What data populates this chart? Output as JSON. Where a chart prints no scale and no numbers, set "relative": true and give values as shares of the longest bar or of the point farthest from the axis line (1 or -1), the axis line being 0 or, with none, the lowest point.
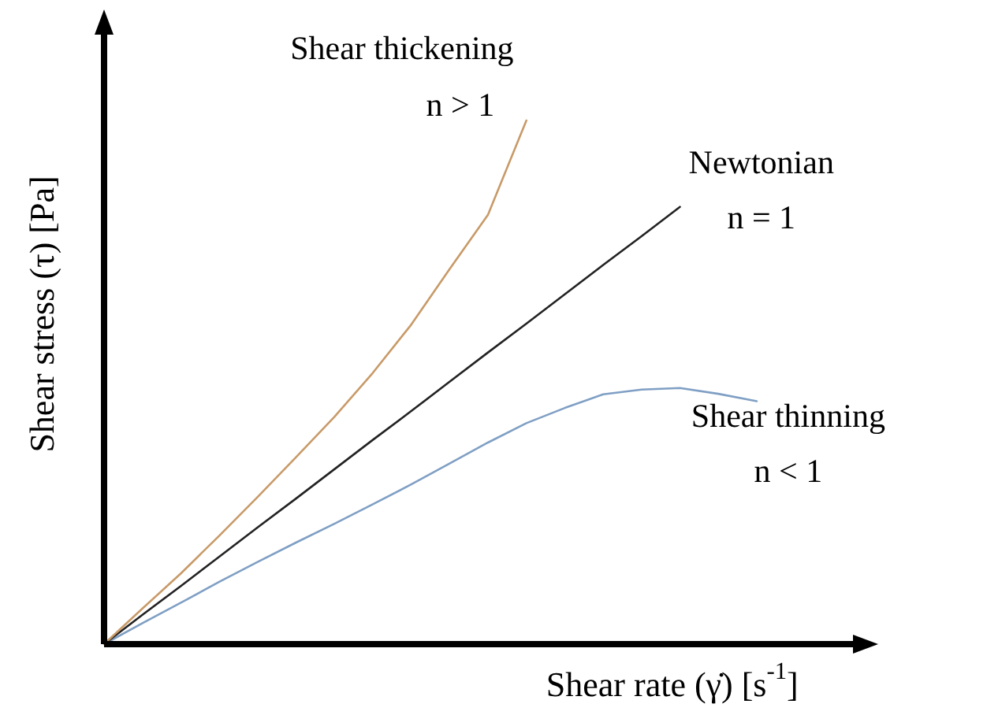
{
  "chart_data": {
    "type": "line",
    "relative": true,
    "xlabel": "Shear rate (γ̇) [s$^{-1}$]",
    "ylabel": "Shear stress (τ) [Pa]",
    "marker": "none",
    "line_style": "solid",
    "categories": [
      null,
      null,
      null,
      null,
      null,
      null,
      null,
      null,
      null,
      null,
      null,
      null,
      null,
      null,
      null,
      null,
      null,
      null,
      null,
      null,
      null
    ],
    "series": [
      {
        "color": "#c89a68",
        "values": [
          0,
          0.068,
          0.135,
          0.207,
          0.281,
          0.357,
          0.434,
          0.518,
          0.61,
          0.716,
          0.82,
          1,
          null,
          null,
          null,
          null,
          null,
          null,
          null,
          null,
          null
        ]
      },
      {
        "color": "#222222",
        "values": [
          0,
          0.056,
          0.111,
          0.167,
          0.223,
          0.278,
          0.334,
          0.39,
          0.445,
          0.501,
          0.557,
          0.612,
          0.668,
          0.724,
          0.779,
          0.835,
          null,
          null,
          null,
          null,
          null
        ]
      },
      {
        "color": "#7f9fc4",
        "values": [
          0,
          0.04,
          0.079,
          0.119,
          0.157,
          0.194,
          0.23,
          0.267,
          0.305,
          0.345,
          0.385,
          0.422,
          0.451,
          0.477,
          0.486,
          0.489,
          0.478,
          0.464,
          null,
          null,
          null
        ]
      }
    ],
    "annotations": [
      "Shear thickening",
      "n > 1",
      "Newtonian",
      "n = 1",
      "Shear thinning",
      "n < 1"
    ]
  }
}
